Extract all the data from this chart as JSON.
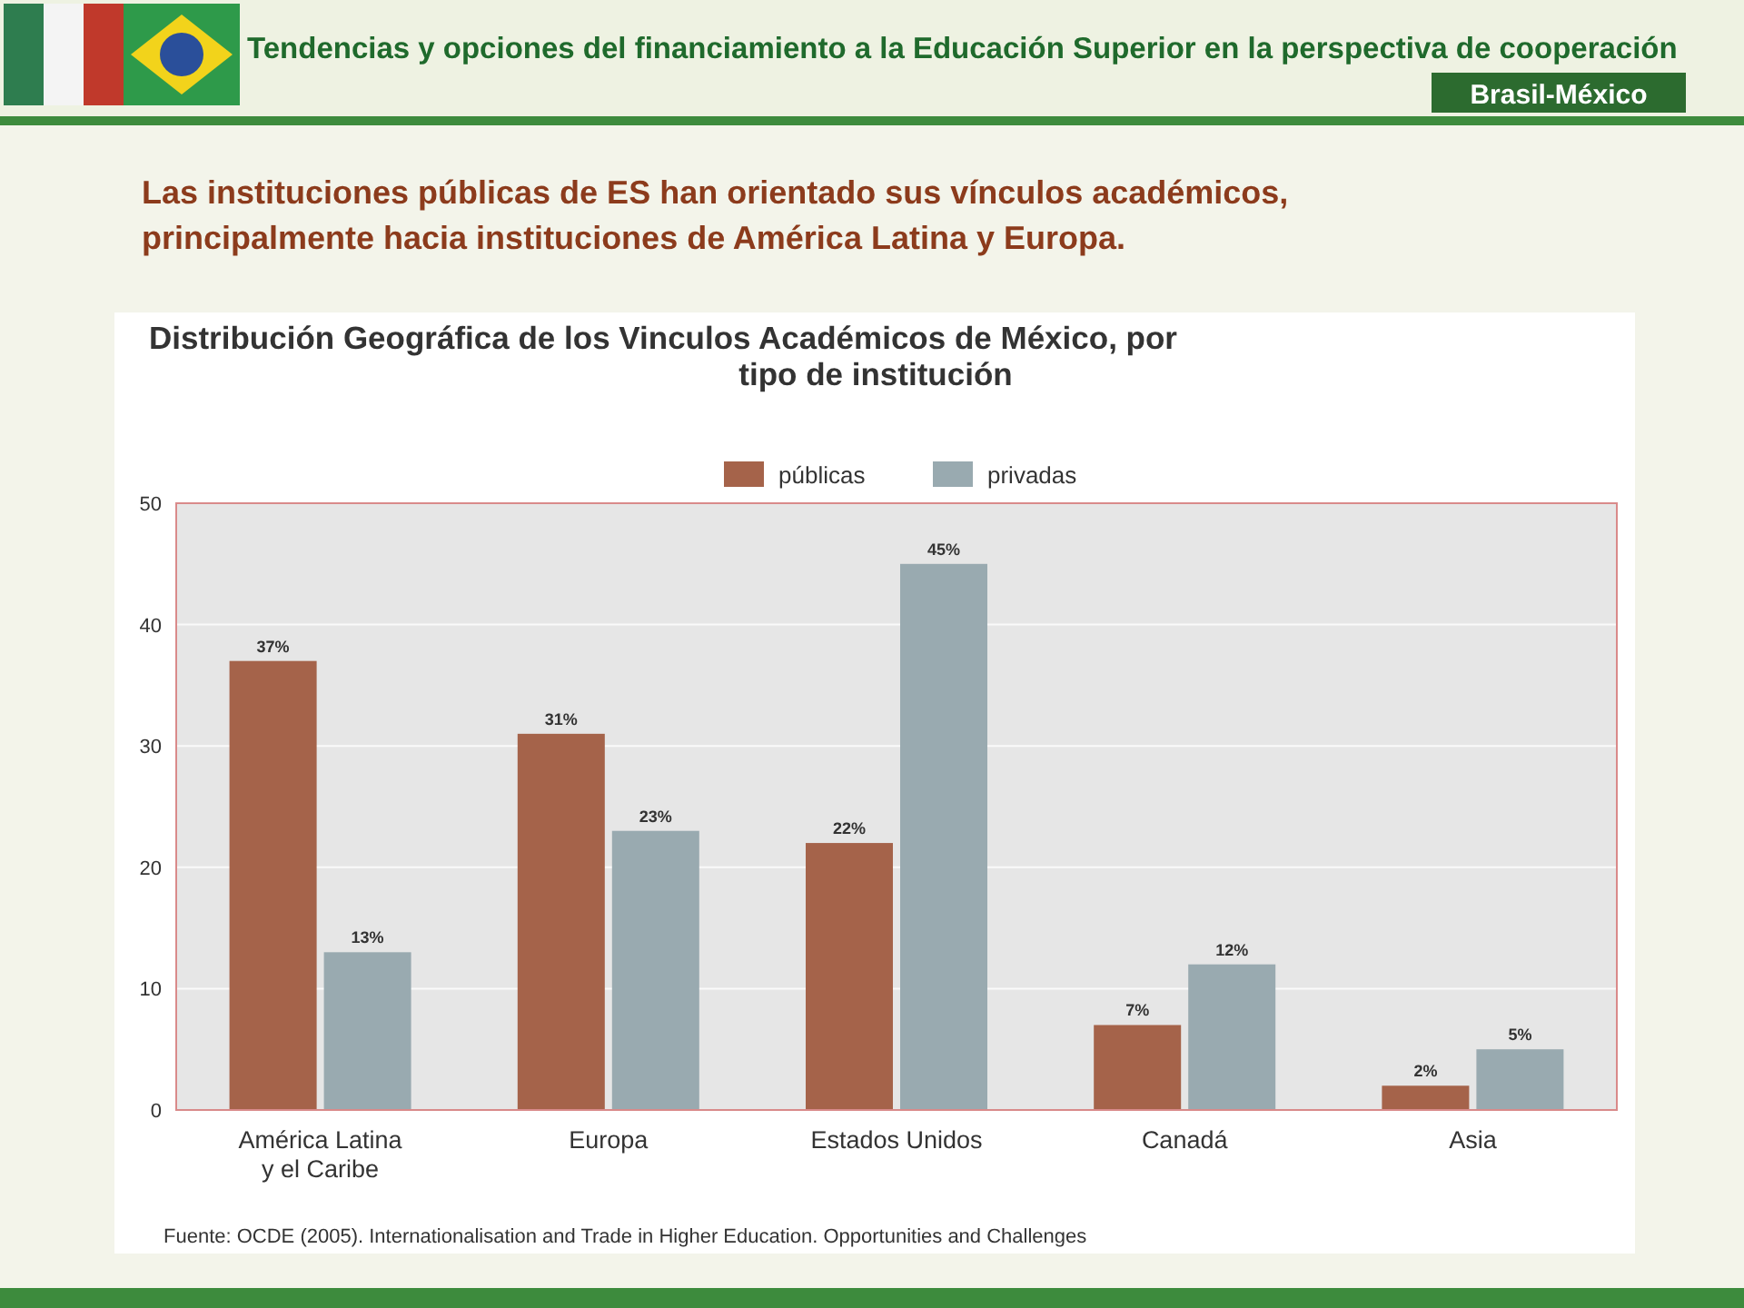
{
  "chart_data": {
    "type": "bar",
    "title": "Distribución Geográfica de los Vinculos Académicos de México, por tipo de institución",
    "subtitle": "Las instituciones públicas de ES han orientado sus vínculos académicos, principalmente hacia instituciones de América Latina y Europa.",
    "categories": [
      "América Latina y el Caribe",
      "Europa",
      "Estados Unidos",
      "Canadá",
      "Asia"
    ],
    "series": [
      {
        "name": "públicas",
        "color": "#a5634a",
        "values": [
          37,
          31,
          22,
          7,
          2
        ],
        "value_labels": [
          "37%",
          "31%",
          "22%",
          "7%",
          "2%"
        ]
      },
      {
        "name": "privadas",
        "color": "#99aab0",
        "values": [
          13,
          23,
          45,
          12,
          5
        ],
        "value_labels": [
          "13%",
          "23%",
          "45%",
          "12%",
          "5%"
        ]
      }
    ],
    "ylim": [
      0,
      50
    ],
    "yticks": [
      0,
      10,
      20,
      30,
      40,
      50
    ],
    "grid": "y",
    "legend": "top",
    "annotations": [
      "Tendencias y opciones del financiamiento a la Educación Superior en la perspectiva de cooperación",
      "Brasil-México",
      "Fuente: OCDE (2005). Internationalisation and Trade in Higher Education. Opportunities and Challenges"
    ]
  }
}
